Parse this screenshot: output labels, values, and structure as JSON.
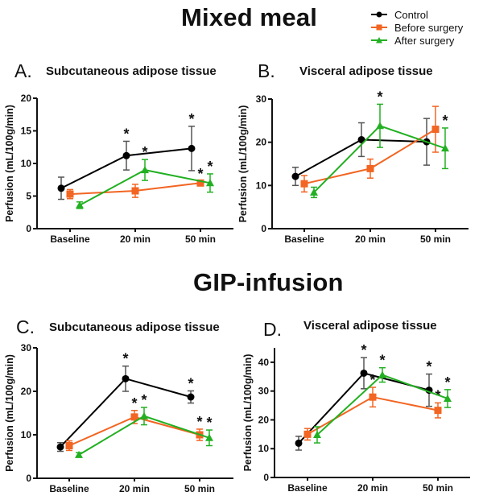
{
  "sections": {
    "mixed_meal_title": "Mixed meal",
    "gip_infusion_title": "GIP-infusion"
  },
  "legend": [
    {
      "name": "Control",
      "color": "#000000",
      "marker": "circle"
    },
    {
      "name": "Before surgery",
      "color": "#f26522",
      "marker": "square"
    },
    {
      "name": "After surgery",
      "color": "#22b022",
      "marker": "triangle"
    }
  ],
  "panels": [
    {
      "letter": "A.",
      "title": "Subcutaneous adipose tissue"
    },
    {
      "letter": "B.",
      "title": "Visceral adipose tissue"
    },
    {
      "letter": "C.",
      "title": "Subcutaneous adipose tissue"
    },
    {
      "letter": "D.",
      "title": "Visceral adipose tissue"
    }
  ],
  "chart_data": [
    {
      "type": "line",
      "panel": "A",
      "section": "Mixed meal",
      "title": "Subcutaneous adipose tissue",
      "xlabel": "",
      "ylabel": "Perfusion (mL/100g/min)",
      "categories": [
        "Baseline",
        "20 min",
        "50 min"
      ],
      "ylim": [
        0,
        20
      ],
      "yticks": [
        0,
        5,
        10,
        15,
        20
      ],
      "series": [
        {
          "name": "Control",
          "values": [
            6.2,
            11.2,
            12.3
          ],
          "errors": [
            1.7,
            2.2,
            3.4
          ],
          "significant": [
            false,
            true,
            true
          ]
        },
        {
          "name": "Before surgery",
          "values": [
            5.3,
            5.8,
            7.0
          ],
          "errors": [
            0.7,
            1.0,
            0.3
          ],
          "significant": [
            false,
            false,
            true
          ]
        },
        {
          "name": "After surgery",
          "values": [
            3.6,
            9.0,
            7.0
          ],
          "errors": [
            0.5,
            1.6,
            1.4
          ],
          "significant": [
            false,
            true,
            true
          ]
        }
      ],
      "extra_stars": [
        {
          "category": "20 min",
          "between": "Control-After surgery"
        }
      ]
    },
    {
      "type": "line",
      "panel": "B",
      "section": "Mixed meal",
      "title": "Visceral adipose tissue",
      "xlabel": "",
      "ylabel": "Perfusion (mL/100g/min)",
      "categories": [
        "Baseline",
        "20 min",
        "50 min"
      ],
      "ylim": [
        0,
        30
      ],
      "yticks": [
        0,
        10,
        20,
        30
      ],
      "series": [
        {
          "name": "Control",
          "values": [
            12.1,
            20.6,
            20.1
          ],
          "errors": [
            2.1,
            3.9,
            5.4
          ],
          "significant": [
            false,
            false,
            false
          ]
        },
        {
          "name": "Before surgery",
          "values": [
            10.4,
            13.9,
            23.0
          ],
          "errors": [
            1.9,
            2.2,
            5.3
          ],
          "significant": [
            false,
            false,
            false
          ]
        },
        {
          "name": "After surgery",
          "values": [
            8.4,
            23.8,
            18.6
          ],
          "errors": [
            1.2,
            5.0,
            4.7
          ],
          "significant": [
            false,
            true,
            true
          ]
        }
      ]
    },
    {
      "type": "line",
      "panel": "C",
      "section": "GIP-infusion",
      "title": "Subcutaneous adipose tissue",
      "xlabel": "",
      "ylabel": "Perfusion (mL/100g/min)",
      "categories": [
        "Baseline",
        "20 min",
        "50 min"
      ],
      "ylim": [
        0,
        30
      ],
      "yticks": [
        0,
        10,
        20,
        30
      ],
      "series": [
        {
          "name": "Control",
          "values": [
            7.2,
            22.9,
            18.7
          ],
          "errors": [
            1.0,
            2.9,
            1.4
          ],
          "significant": [
            false,
            true,
            true
          ]
        },
        {
          "name": "Before surgery",
          "values": [
            7.5,
            14.1,
            10.0
          ],
          "errors": [
            1.1,
            1.5,
            1.3
          ],
          "significant": [
            false,
            true,
            true
          ]
        },
        {
          "name": "After surgery",
          "values": [
            5.4,
            14.3,
            9.3
          ],
          "errors": [
            0.5,
            2.0,
            1.8
          ],
          "significant": [
            false,
            true,
            true
          ]
        }
      ]
    },
    {
      "type": "line",
      "panel": "D",
      "section": "GIP-infusion",
      "title": "Visceral adipose tissue",
      "xlabel": "",
      "ylabel": "Perfusion (mL/100g/min)",
      "categories": [
        "Baseline",
        "20 min",
        "50 min"
      ],
      "ylim": [
        0,
        45
      ],
      "yticks": [
        0,
        10,
        20,
        30,
        40
      ],
      "series": [
        {
          "name": "Control",
          "values": [
            11.9,
            36.2,
            30.3
          ],
          "errors": [
            2.4,
            5.4,
            5.6
          ],
          "significant": [
            false,
            true,
            true
          ]
        },
        {
          "name": "Before surgery",
          "values": [
            15.0,
            27.9,
            23.3
          ],
          "errors": [
            2.0,
            3.4,
            2.6
          ],
          "significant": [
            false,
            true,
            true
          ]
        },
        {
          "name": "After surgery",
          "values": [
            14.8,
            35.6,
            27.4
          ],
          "errors": [
            2.8,
            2.5,
            3.1
          ],
          "significant": [
            false,
            true,
            true
          ]
        }
      ]
    }
  ]
}
